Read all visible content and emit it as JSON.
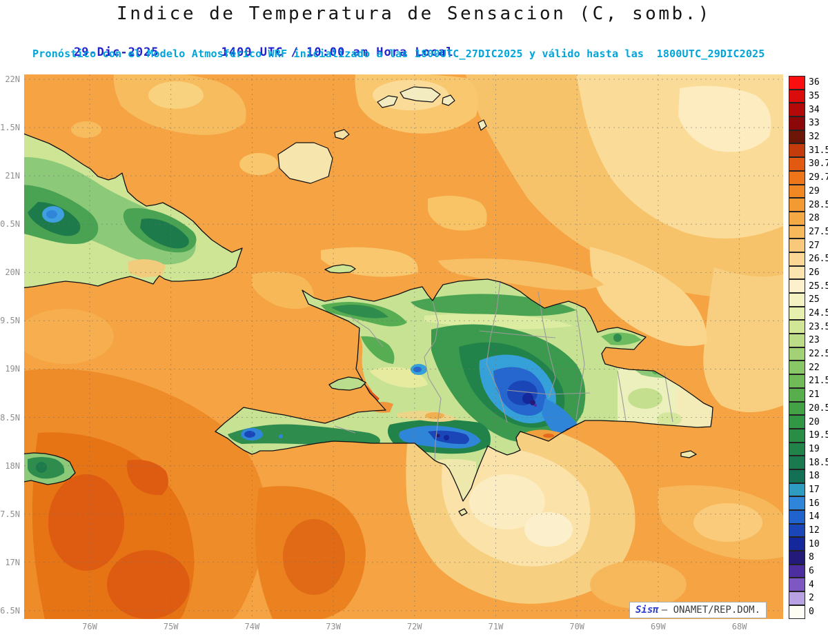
{
  "header": {
    "title": "Indice de Temperatura de Sensacion (C, somb.)",
    "date": "29-Dic-2025",
    "time": "1400 UTC / 10:00 am Hora Local",
    "forecast": "Pronóstico con el Modelo Atmosférico WRF inicializado a las 1800UTC_27DIC2025 y válido hasta las  1800UTC_29DIC2025"
  },
  "map": {
    "lat_labels": [
      "22N",
      "1.5N",
      "21N",
      "0.5N",
      "20N",
      "9.5N",
      "19N",
      "8.5N",
      "18N",
      "7.5N",
      "17N",
      "6.5N"
    ],
    "lon_labels": [
      "76W",
      "75W",
      "74W",
      "73W",
      "72W",
      "71W",
      "70W",
      "69W",
      "68W"
    ]
  },
  "legend": {
    "entries": [
      {
        "label": "36",
        "color": "#f90f0f"
      },
      {
        "label": "35",
        "color": "#da0c0c"
      },
      {
        "label": "34",
        "color": "#b30909"
      },
      {
        "label": "33",
        "color": "#8c0707"
      },
      {
        "label": "32",
        "color": "#6b1606"
      },
      {
        "label": "31.5",
        "color": "#c43c0c"
      },
      {
        "label": "30.7",
        "color": "#e25a12"
      },
      {
        "label": "29.7",
        "color": "#ee7519"
      },
      {
        "label": "29",
        "color": "#f28824"
      },
      {
        "label": "28.5",
        "color": "#f49a33"
      },
      {
        "label": "28",
        "color": "#f5a945"
      },
      {
        "label": "27.5",
        "color": "#f7b95c"
      },
      {
        "label": "27",
        "color": "#f9c97b"
      },
      {
        "label": "26.5",
        "color": "#fbd795"
      },
      {
        "label": "26",
        "color": "#fce4b0"
      },
      {
        "label": "25.5",
        "color": "#fdf0cd"
      },
      {
        "label": "25",
        "color": "#f4f2c3"
      },
      {
        "label": "24.5",
        "color": "#e6efad"
      },
      {
        "label": "23.5",
        "color": "#d2e698"
      },
      {
        "label": "23",
        "color": "#bcdc87"
      },
      {
        "label": "22.5",
        "color": "#a2d176"
      },
      {
        "label": "22",
        "color": "#89c666"
      },
      {
        "label": "21.5",
        "color": "#70ba58"
      },
      {
        "label": "21",
        "color": "#58ae4d"
      },
      {
        "label": "20.5",
        "color": "#43a246"
      },
      {
        "label": "20",
        "color": "#329744"
      },
      {
        "label": "19.5",
        "color": "#298d46"
      },
      {
        "label": "19",
        "color": "#21834a"
      },
      {
        "label": "18.5",
        "color": "#1a794f"
      },
      {
        "label": "18",
        "color": "#147055"
      },
      {
        "label": "17",
        "color": "#2e9bc0"
      },
      {
        "label": "16",
        "color": "#2f86d8"
      },
      {
        "label": "14",
        "color": "#2163cc"
      },
      {
        "label": "12",
        "color": "#1b46b8"
      },
      {
        "label": "10",
        "color": "#14289c"
      },
      {
        "label": "8",
        "color": "#241a7a"
      },
      {
        "label": "6",
        "color": "#4c2e9e"
      },
      {
        "label": "4",
        "color": "#7e58c2"
      },
      {
        "label": "2",
        "color": "#b9a2e2"
      },
      {
        "label": "0",
        "color": "#fdfcf5"
      }
    ]
  },
  "watermark": {
    "brand": "Sisπ",
    "text": "– ONAMET/REP.DOM."
  }
}
